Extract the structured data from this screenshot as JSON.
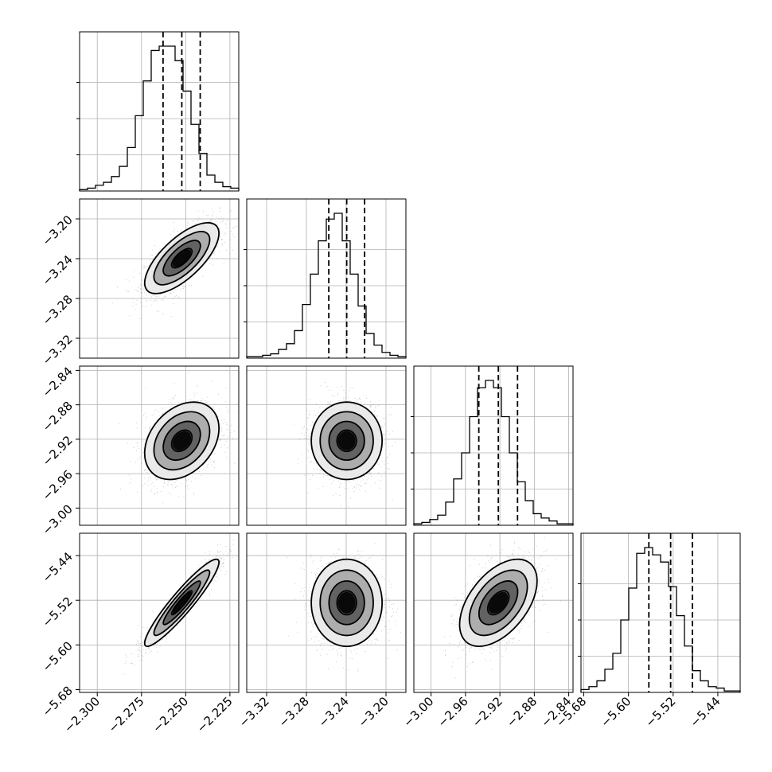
{
  "chart_data": {
    "type": "corner",
    "grid": true,
    "quantile_lines": "dashed",
    "parameters": [
      {
        "range": [
          -2.31,
          -2.22
        ],
        "ticks": [
          -2.3,
          -2.275,
          -2.25,
          -2.225
        ],
        "tick_labels": [
          "−2.300",
          "−2.275",
          "−2.250",
          "−2.225"
        ],
        "quantiles": [
          -2.2628,
          -2.2522,
          -2.2418
        ],
        "center": -2.2522,
        "sigma": 0.0105,
        "histogram": [
          0.01,
          0.02,
          0.04,
          0.06,
          0.1,
          0.17,
          0.3,
          0.52,
          0.76,
          0.97,
          1.0,
          1.0,
          0.9,
          0.69,
          0.46,
          0.26,
          0.11,
          0.06,
          0.03,
          0.02
        ]
      },
      {
        "range": [
          -3.34,
          -3.18
        ],
        "ticks": [
          -3.32,
          -3.28,
          -3.24,
          -3.2
        ],
        "tick_labels": [
          "−3.32",
          "−3.28",
          "−3.24",
          "−3.20"
        ],
        "quantiles": [
          -3.2575,
          -3.2395,
          -3.2215
        ],
        "center": -3.2395,
        "sigma": 0.0178,
        "histogram": [
          0.01,
          0.01,
          0.02,
          0.03,
          0.06,
          0.1,
          0.19,
          0.37,
          0.58,
          0.81,
          0.96,
          1.0,
          0.81,
          0.58,
          0.36,
          0.17,
          0.09,
          0.04,
          0.02,
          0.01
        ]
      },
      {
        "range": [
          -3.02,
          -2.835
        ],
        "ticks": [
          -3.0,
          -2.96,
          -2.92,
          -2.88,
          -2.84
        ],
        "tick_labels": [
          "−3.00",
          "−2.96",
          "−2.92",
          "−2.88",
          "−2.84"
        ],
        "quantiles": [
          -2.9445,
          -2.9218,
          -2.8995
        ],
        "center": -2.9218,
        "sigma": 0.0225,
        "histogram": [
          0.01,
          0.02,
          0.04,
          0.07,
          0.16,
          0.32,
          0.5,
          0.75,
          0.95,
          1.0,
          0.95,
          0.75,
          0.5,
          0.3,
          0.17,
          0.08,
          0.05,
          0.03,
          0.01,
          0.01
        ]
      },
      {
        "range": [
          -5.685,
          -5.4
        ],
        "ticks": [
          -5.68,
          -5.6,
          -5.52,
          -5.44
        ],
        "tick_labels": [
          "−5.68",
          "−5.60",
          "−5.52",
          "−5.44"
        ],
        "quantiles": [
          -5.5635,
          -5.5245,
          -5.4855
        ],
        "center": -5.5245,
        "sigma": 0.039,
        "histogram": [
          0.02,
          0.04,
          0.08,
          0.16,
          0.27,
          0.5,
          0.72,
          0.96,
          1.0,
          0.95,
          0.9,
          0.73,
          0.53,
          0.32,
          0.15,
          0.08,
          0.04,
          0.03,
          0.01,
          0.01
        ]
      }
    ],
    "correlations": {
      "1,0": 0.7,
      "2,0": 0.32,
      "2,1": 0.0,
      "3,0": 0.93,
      "3,1": 0.0,
      "3,2": 0.5
    }
  }
}
